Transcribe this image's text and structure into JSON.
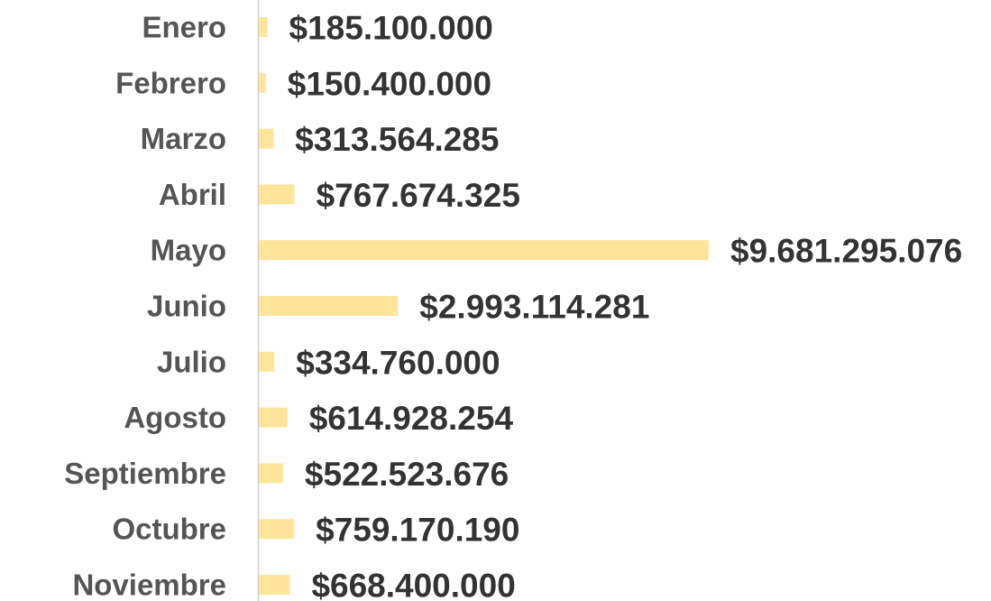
{
  "chart_data": {
    "type": "bar",
    "orientation": "horizontal",
    "categories": [
      "Enero",
      "Febrero",
      "Marzo",
      "Abril",
      "Mayo",
      "Junio",
      "Julio",
      "Agosto",
      "Septiembre",
      "Octubre",
      "Noviembre"
    ],
    "values": [
      185100000,
      150400000,
      313564285,
      767674325,
      9681295076,
      2993114281,
      334760000,
      614928254,
      522523676,
      759170190,
      668400000
    ],
    "value_labels": [
      "$185.100.000",
      "$150.400.000",
      "$313.564.285",
      "$767.674.325",
      "$9.681.295.076",
      "$2.993.114.281",
      "$334.760.000",
      "$614.928.254",
      "$522.523.676",
      "$759.170.190",
      "$668.400.000"
    ],
    "color": "#fee59a"
  }
}
